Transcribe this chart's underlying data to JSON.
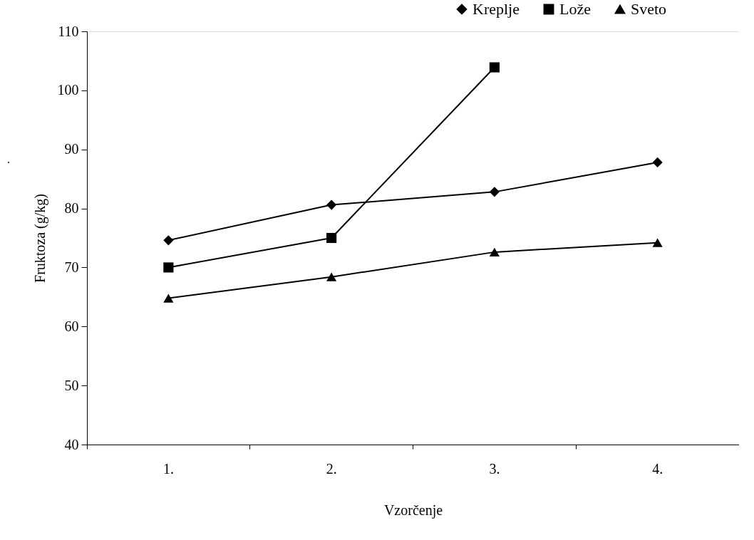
{
  "chart_data": {
    "type": "line",
    "xlabel": "Vzorčenje",
    "ylabel": "Fruktoza (g/kg)",
    "categories": [
      "1.",
      "2.",
      "3.",
      "4."
    ],
    "series": [
      {
        "name": "Kreplje",
        "color": "#000000",
        "marker": "diamond",
        "values": [
          74.6,
          80.6,
          82.8,
          87.8
        ]
      },
      {
        "name": "Lože",
        "color": "#000000",
        "marker": "square",
        "values": [
          70.0,
          75.0,
          103.9,
          null
        ]
      },
      {
        "name": "Sveto",
        "color": "#000000",
        "marker": "triangle",
        "values": [
          64.8,
          68.4,
          72.6,
          74.2
        ]
      }
    ],
    "ylim": [
      40,
      110
    ],
    "yticks": [
      40,
      50,
      60,
      70,
      80,
      90,
      100,
      110
    ],
    "grid": false,
    "legend": "top right",
    "line_style": "solid",
    "annotations": [
      "."
    ]
  }
}
